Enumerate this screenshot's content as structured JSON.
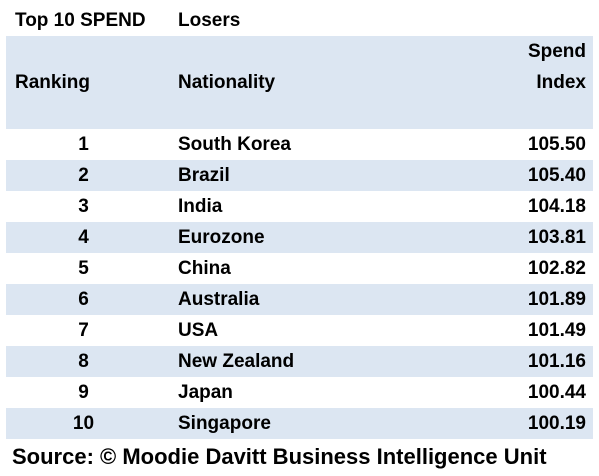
{
  "header": {
    "title": "Top 10 SPEND",
    "subtitle": "Losers",
    "col_ranking": "Ranking",
    "col_nationality": "Nationality",
    "col_index_line1": "Spend",
    "col_index_line2": "Index"
  },
  "colors": {
    "band": "#dce6f2",
    "text": "#000000"
  },
  "rows": [
    {
      "rank": "1",
      "nationality": "South Korea",
      "index": "105.50"
    },
    {
      "rank": "2",
      "nationality": "Brazil",
      "index": "105.40"
    },
    {
      "rank": "3",
      "nationality": "India",
      "index": "104.18"
    },
    {
      "rank": "4",
      "nationality": "Eurozone",
      "index": "103.81"
    },
    {
      "rank": "5",
      "nationality": "China",
      "index": "102.82"
    },
    {
      "rank": "6",
      "nationality": "Australia",
      "index": "101.89"
    },
    {
      "rank": "7",
      "nationality": "USA",
      "index": "101.49"
    },
    {
      "rank": "8",
      "nationality": "New Zealand",
      "index": "101.16"
    },
    {
      "rank": "9",
      "nationality": "Japan",
      "index": "100.44"
    },
    {
      "rank": "10",
      "nationality": "Singapore",
      "index": "100.19"
    }
  ],
  "source": "Source: © Moodie Davitt Business Intelligence Unit"
}
